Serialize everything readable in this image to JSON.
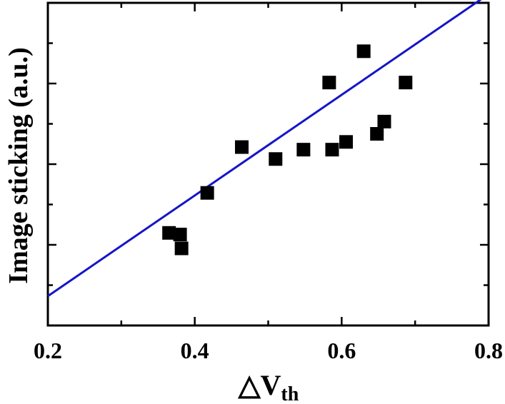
{
  "chart_data": {
    "type": "scatter",
    "title": "",
    "xlabel": "△V",
    "xlabel_subscript": "th",
    "ylabel": "Image sticking (a.u.)",
    "xlim": [
      0.2,
      0.8
    ],
    "ylim": [
      0,
      1
    ],
    "x_ticks": [
      "0.2",
      "0.4",
      "0.6",
      "0.8"
    ],
    "y_tick_labels_shown": false,
    "grid": false,
    "legend": "none",
    "marker_color": "#000000",
    "line_color": "#1515c8",
    "series": [
      {
        "values": [
          {
            "x": 0.365,
            "y": 0.287
          },
          {
            "x": 0.38,
            "y": 0.282
          },
          {
            "x": 0.382,
            "y": 0.239
          },
          {
            "x": 0.417,
            "y": 0.411
          },
          {
            "x": 0.464,
            "y": 0.553
          },
          {
            "x": 0.51,
            "y": 0.516
          },
          {
            "x": 0.548,
            "y": 0.545
          },
          {
            "x": 0.583,
            "y": 0.753
          },
          {
            "x": 0.587,
            "y": 0.545
          },
          {
            "x": 0.606,
            "y": 0.569
          },
          {
            "x": 0.63,
            "y": 0.85
          },
          {
            "x": 0.648,
            "y": 0.594
          },
          {
            "x": 0.658,
            "y": 0.632
          },
          {
            "x": 0.687,
            "y": 0.753
          }
        ]
      }
    ],
    "fit_line": {
      "x": [
        0.2,
        0.8
      ],
      "y": [
        0.091,
        1.027
      ]
    }
  }
}
